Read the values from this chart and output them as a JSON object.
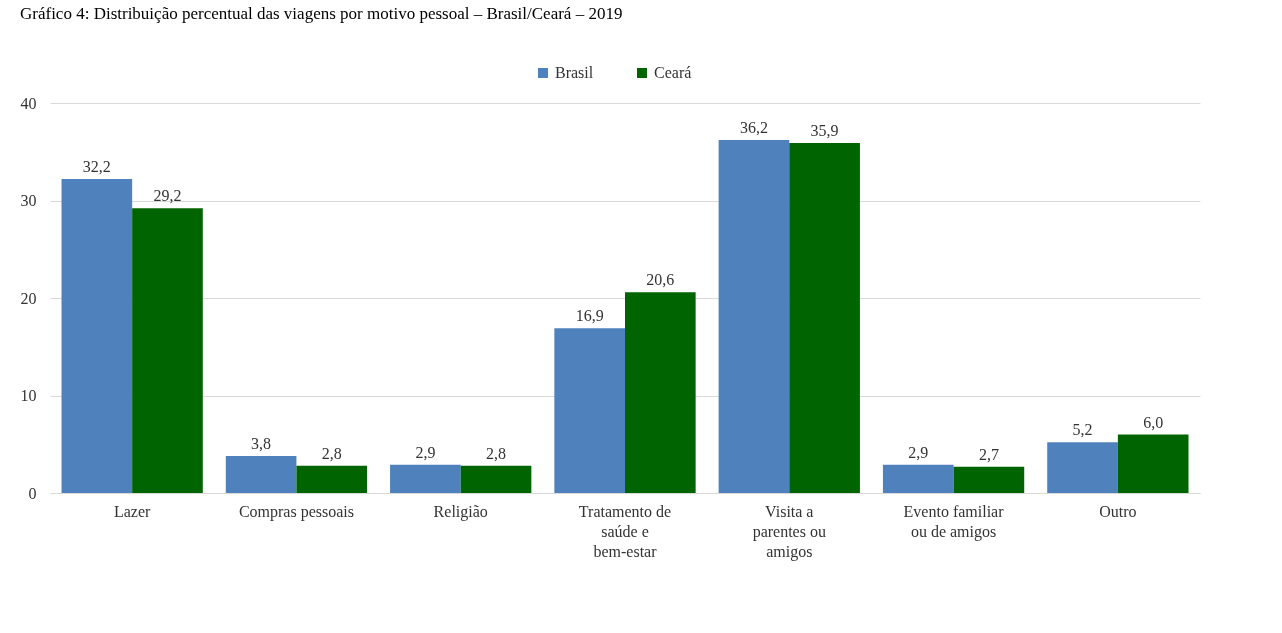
{
  "chart_data": {
    "type": "bar",
    "title": "Gráfico 4: Distribuição percentual das viagens por motivo pessoal – Brasil/Ceará – 2019",
    "categories": [
      "Lazer",
      "Compras pessoais",
      "Religião",
      "Tratamento de saúde e bem-estar",
      "Visita a parentes ou amigos",
      "Evento familiar ou de amigos",
      "Outro"
    ],
    "series": [
      {
        "name": "Brasil",
        "color": "#4f81bd",
        "values": [
          32.2,
          3.8,
          2.9,
          16.9,
          36.2,
          2.9,
          5.2
        ],
        "value_labels": [
          "32,2",
          "3,8",
          "2,9",
          "16,9",
          "36,2",
          "2,9",
          "5,2"
        ]
      },
      {
        "name": "Ceará",
        "color": "#006400",
        "values": [
          29.2,
          2.8,
          2.8,
          20.6,
          35.9,
          2.7,
          6.0
        ],
        "value_labels": [
          "29,2",
          "2,8",
          "2,8",
          "20,6",
          "35,9",
          "2,7",
          "6,0"
        ]
      }
    ],
    "ylim": [
      0,
      40
    ],
    "yticks": [
      0,
      10,
      20,
      30,
      40
    ],
    "grid": "y",
    "legend": "top"
  }
}
